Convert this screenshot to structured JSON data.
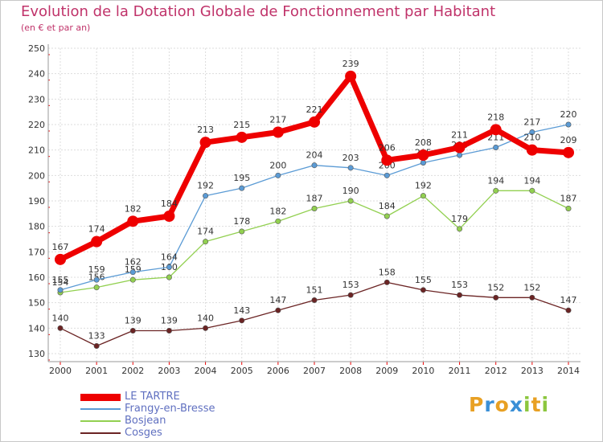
{
  "title": "Evolution de la Dotation Globale de Fonctionnement par Habitant",
  "subtitle": "(en € et par an)",
  "logo": {
    "letters": [
      "P",
      "r",
      "o",
      "x",
      "i",
      "t",
      "i"
    ],
    "colors": [
      "#e8a023",
      "#3a8fd6",
      "#e8a023",
      "#3a8fd6",
      "#8cc63e",
      "#e8a023",
      "#8cc63e"
    ]
  },
  "chart_data": {
    "type": "line",
    "x": [
      "2000",
      "2001",
      "2002",
      "2003",
      "2004",
      "2005",
      "2006",
      "2007",
      "2008",
      "2009",
      "2010",
      "2011",
      "2012",
      "2013",
      "2014"
    ],
    "ylim": [
      130,
      250
    ],
    "yticks": [
      "130",
      "140",
      "150",
      "160",
      "170",
      "180",
      "190",
      "200",
      "210",
      "220",
      "230",
      "240",
      "250"
    ],
    "grid": true,
    "legend_position": "bottom-left",
    "series": [
      {
        "name": "LE TARTRE",
        "color": "#ee0000",
        "values": [
          167,
          174,
          182,
          184,
          213,
          215,
          217,
          221,
          239,
          206,
          208,
          211,
          218,
          210,
          209
        ]
      },
      {
        "name": "Frangy-en-Bresse",
        "color": "#5b9bd5",
        "values": [
          155,
          159,
          162,
          164,
          192,
          195,
          200,
          204,
          203,
          200,
          205,
          208,
          211,
          217,
          220
        ]
      },
      {
        "name": "Bosjean",
        "color": "#92d050",
        "values": [
          154,
          156,
          159,
          160,
          174,
          178,
          182,
          187,
          190,
          184,
          192,
          179,
          194,
          194,
          187
        ]
      },
      {
        "name": "Cosges",
        "color": "#6b2424",
        "values": [
          140,
          133,
          139,
          139,
          140,
          143,
          147,
          151,
          153,
          158,
          155,
          153,
          152,
          152,
          147
        ]
      }
    ]
  }
}
